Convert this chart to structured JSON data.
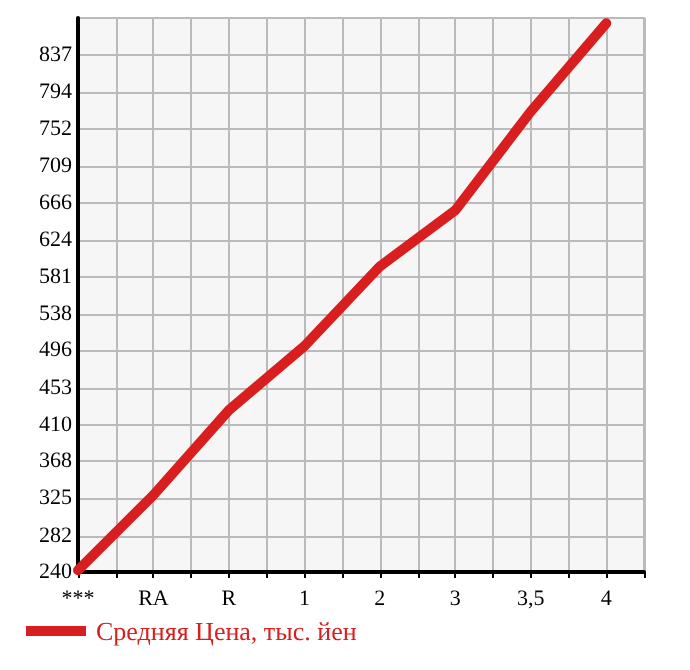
{
  "chart_data": {
    "type": "line",
    "categories": [
      "***",
      "RA",
      "R",
      "1",
      "2",
      "3",
      "3,5",
      "4"
    ],
    "series": [
      {
        "name": "Средняя Цена, тыс. йен",
        "color": "#d81e1e",
        "values": [
          242,
          329,
          427,
          501,
          593,
          658,
          772,
          874
        ]
      }
    ],
    "ylim": [
      240,
      880
    ],
    "yticks": [
      240,
      282,
      325,
      368,
      410,
      453,
      496,
      538,
      581,
      624,
      666,
      709,
      752,
      794,
      837
    ],
    "grid": true,
    "legend": "bottom",
    "marker": "none",
    "line_style": "solid"
  }
}
